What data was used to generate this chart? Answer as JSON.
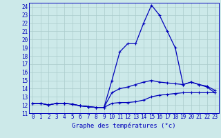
{
  "title": "Graphe des températures (°c)",
  "xlim": [
    -0.5,
    23.5
  ],
  "ylim": [
    11,
    24.5
  ],
  "xticks": [
    0,
    1,
    2,
    3,
    4,
    5,
    6,
    7,
    8,
    9,
    10,
    11,
    12,
    13,
    14,
    15,
    16,
    17,
    18,
    19,
    20,
    21,
    22,
    23
  ],
  "yticks": [
    11,
    12,
    13,
    14,
    15,
    16,
    17,
    18,
    19,
    20,
    21,
    22,
    23,
    24
  ],
  "bg_color": "#cce9e9",
  "grid_color": "#aacccc",
  "line_color": "#0000bb",
  "hours": [
    0,
    1,
    2,
    3,
    4,
    5,
    6,
    7,
    8,
    9,
    10,
    11,
    12,
    13,
    14,
    15,
    16,
    17,
    18,
    19,
    20,
    21,
    22,
    23
  ],
  "temp_main": [
    12.2,
    12.2,
    12.0,
    12.2,
    12.2,
    12.1,
    11.9,
    11.8,
    11.7,
    11.7,
    15.0,
    18.5,
    19.5,
    19.5,
    22.0,
    24.2,
    23.0,
    21.0,
    19.0,
    14.5,
    14.8,
    14.5,
    14.2,
    13.5
  ],
  "temp_min": [
    12.2,
    12.2,
    12.0,
    12.2,
    12.2,
    12.1,
    11.9,
    11.8,
    11.7,
    11.7,
    12.2,
    12.3,
    12.3,
    12.4,
    12.6,
    13.0,
    13.2,
    13.3,
    13.4,
    13.5,
    13.5,
    13.5,
    13.5,
    13.5
  ],
  "temp_max": [
    12.2,
    12.2,
    12.0,
    12.2,
    12.2,
    12.1,
    11.9,
    11.8,
    11.7,
    11.7,
    13.5,
    14.0,
    14.2,
    14.5,
    14.8,
    15.0,
    14.8,
    14.7,
    14.6,
    14.5,
    14.8,
    14.5,
    14.3,
    13.8
  ],
  "tick_fontsize": 5.5,
  "xlabel_fontsize": 6.5
}
